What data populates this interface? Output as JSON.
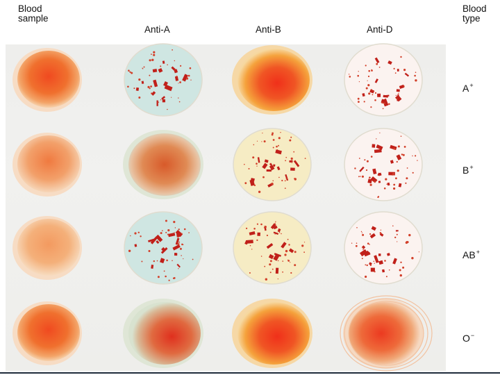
{
  "headers": {
    "sample_line1": "Blood",
    "sample_line2": "sample",
    "anti_a": "Anti-A",
    "anti_b": "Anti-B",
    "anti_d": "Anti-D",
    "type_line1": "Blood",
    "type_line2": "type"
  },
  "rows": [
    {
      "type_base": "A",
      "type_sup": "+",
      "results": [
        "agglutinated",
        "none",
        "agglutinated"
      ]
    },
    {
      "type_base": "B",
      "type_sup": "+",
      "results": [
        "none",
        "agglutinated",
        "agglutinated"
      ]
    },
    {
      "type_base": "AB",
      "type_sup": "+",
      "results": [
        "agglutinated",
        "agglutinated",
        "agglutinated"
      ]
    },
    {
      "type_base": "O",
      "type_sup": "−",
      "results": [
        "none",
        "none",
        "none"
      ]
    }
  ],
  "colors": {
    "blood": "#e8381c",
    "clump": "#c0201a",
    "anti_a_serum": "#cfe6e2",
    "anti_b_serum": "#f6ecc4",
    "anti_d_serum": "#fbf3f0"
  }
}
